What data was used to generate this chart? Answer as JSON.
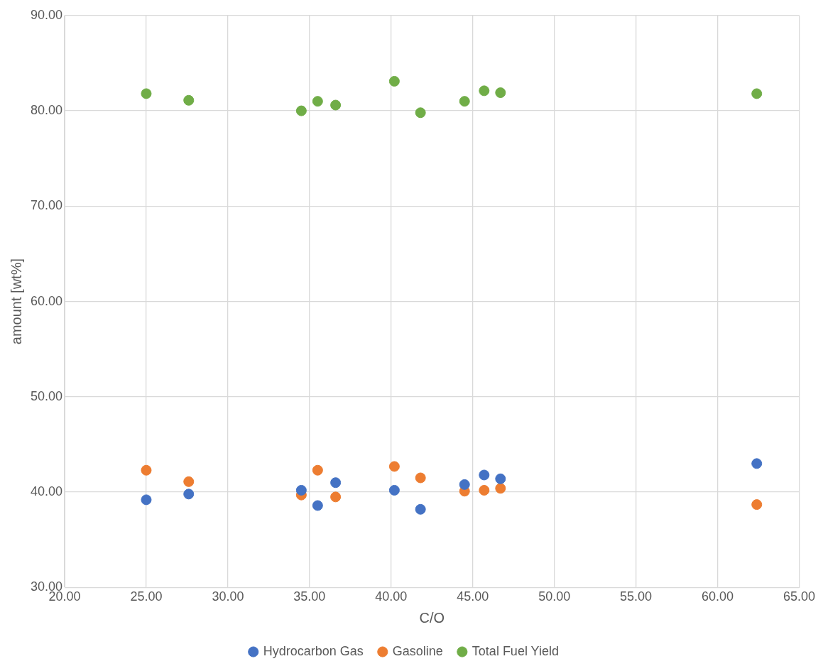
{
  "chart_data": {
    "type": "scatter",
    "xlabel": "C/O",
    "ylabel": "amount [wt%]",
    "x": [
      25.0,
      27.6,
      34.5,
      35.5,
      36.6,
      40.2,
      41.8,
      44.5,
      45.7,
      46.7,
      62.4
    ],
    "series": [
      {
        "name": "Hydrocarbon Gas",
        "color": "#4472c4",
        "values": [
          39.2,
          39.8,
          40.2,
          38.6,
          41.0,
          40.2,
          38.2,
          40.8,
          41.8,
          41.4,
          43.0
        ]
      },
      {
        "name": "Gasoline",
        "color": "#ed7d31",
        "values": [
          42.3,
          41.1,
          39.7,
          42.3,
          39.5,
          42.7,
          41.5,
          40.1,
          40.2,
          40.4,
          38.7
        ]
      },
      {
        "name": "Total Fuel Yield",
        "color": "#70ad47",
        "values": [
          81.8,
          81.1,
          80.0,
          81.0,
          80.6,
          83.1,
          79.8,
          81.0,
          82.1,
          81.9,
          81.8
        ]
      }
    ],
    "xlim": [
      20,
      65
    ],
    "xticks": [
      {
        "value": 20,
        "label": "20.00"
      },
      {
        "value": 25,
        "label": "25.00"
      },
      {
        "value": 30,
        "label": "30.00"
      },
      {
        "value": 35,
        "label": "35.00"
      },
      {
        "value": 40,
        "label": "40.00"
      },
      {
        "value": 45,
        "label": "45.00"
      },
      {
        "value": 50,
        "label": "50.00"
      },
      {
        "value": 55,
        "label": "55.00"
      },
      {
        "value": 60,
        "label": "60.00"
      },
      {
        "value": 65,
        "label": "65.00"
      }
    ],
    "ylim": [
      30,
      90
    ],
    "yticks": [
      {
        "value": 30,
        "label": "30.00"
      },
      {
        "value": 40,
        "label": "40.00"
      },
      {
        "value": 50,
        "label": "50.00"
      },
      {
        "value": 60,
        "label": "60.00"
      },
      {
        "value": 70,
        "label": "70.00"
      },
      {
        "value": 80,
        "label": "80.00"
      },
      {
        "value": 90,
        "label": "90.00"
      }
    ],
    "grid": true,
    "legend": "bottom",
    "marker": "circle"
  }
}
